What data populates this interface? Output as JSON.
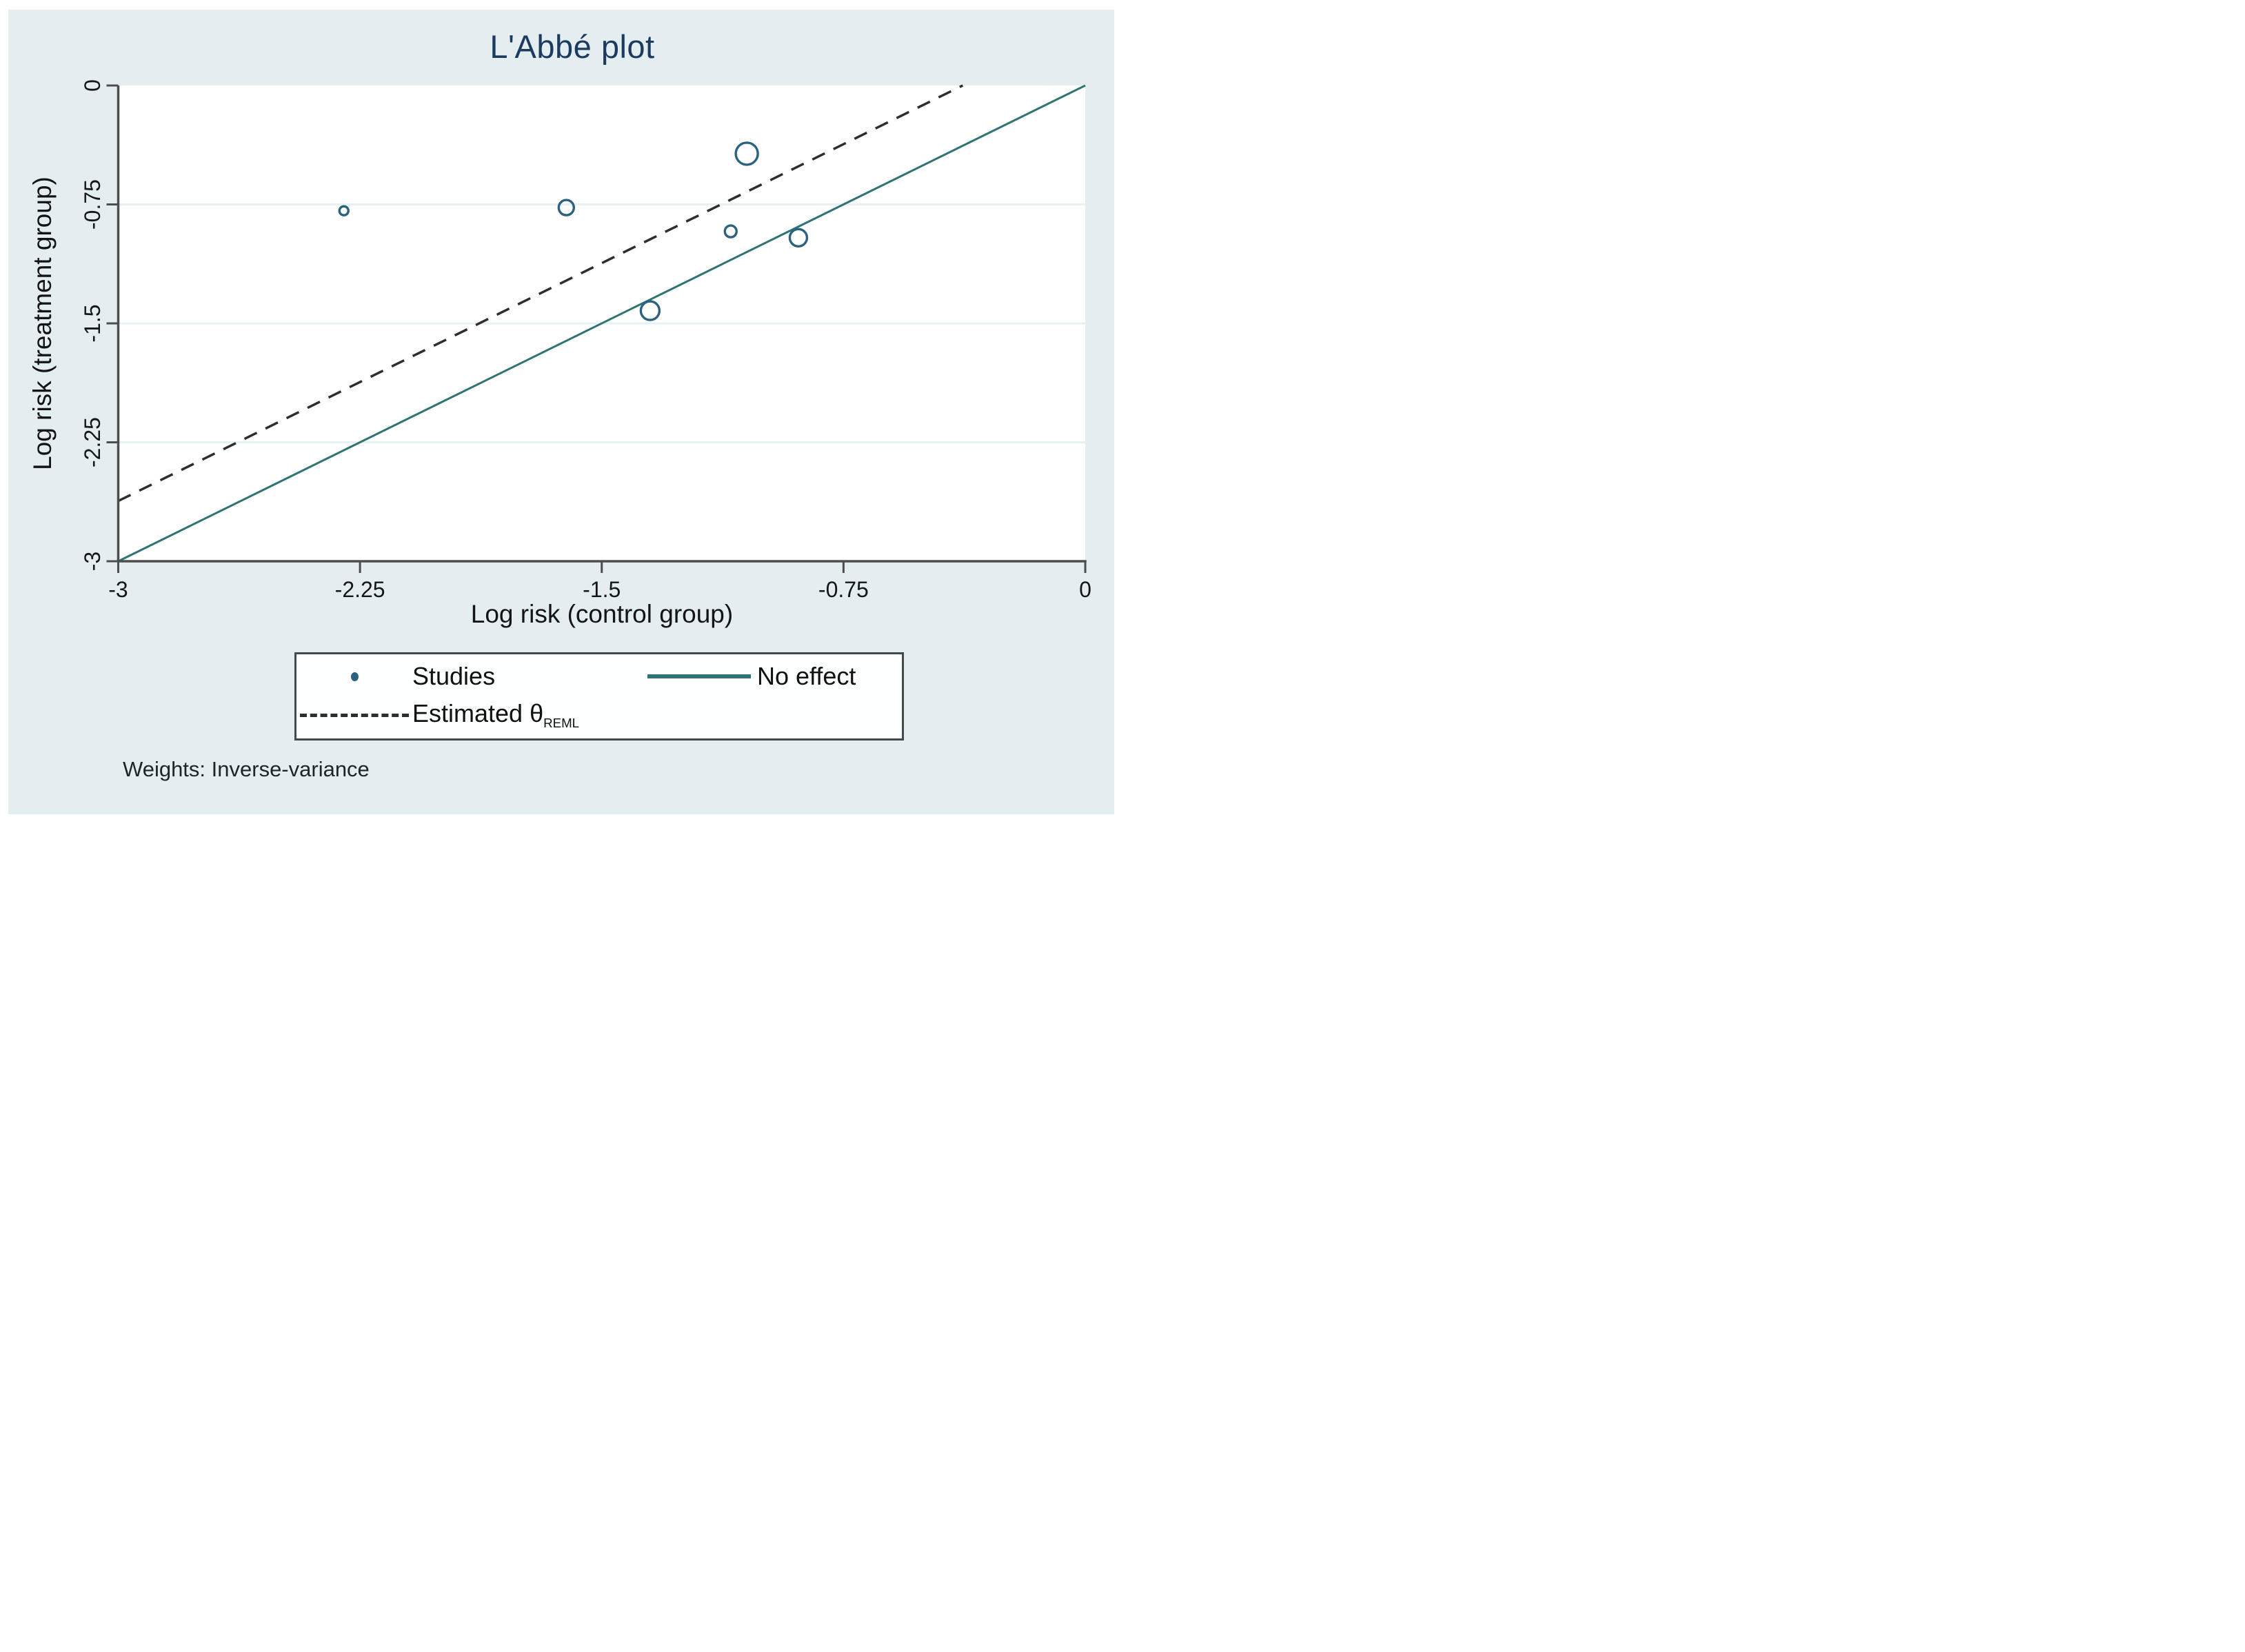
{
  "title": "L'Abbé plot",
  "x_axis": {
    "label": "Log risk (control group)"
  },
  "y_axis": {
    "label": "Log risk (treatment group)"
  },
  "legend": {
    "studies_label": "Studies",
    "no_effect_label": "No effect",
    "estimated_label": "Estimated θ",
    "estimated_sub": "REML"
  },
  "note": "Weights: Inverse-variance",
  "colors": {
    "canvas": "#e4eef0",
    "plot_background": "#ffffff",
    "axis": "#4d4d4d",
    "gridline": "#e7f1f3",
    "title_text": "#1d3a5f",
    "marker_stroke": "#2c617f",
    "no_effect_line": "#2f7472",
    "estimated_line": "#2e2e2e"
  },
  "chart_data": {
    "type": "scatter",
    "title": "L'Abbé plot",
    "xlabel": "Log risk (control group)",
    "ylabel": "Log risk (treatment group)",
    "xlim": [
      -3,
      0
    ],
    "ylim": [
      -3,
      0
    ],
    "x_ticks": [
      {
        "value": -3,
        "label": "-3"
      },
      {
        "value": -2.25,
        "label": "-2.25"
      },
      {
        "value": -1.5,
        "label": "-1.5"
      },
      {
        "value": -0.75,
        "label": "-0.75"
      },
      {
        "value": 0,
        "label": "0"
      }
    ],
    "y_ticks": [
      {
        "value": 0,
        "label": "0"
      },
      {
        "value": -0.75,
        "label": "-0.75"
      },
      {
        "value": -1.5,
        "label": "-1.5"
      },
      {
        "value": -2.25,
        "label": "-2.25"
      },
      {
        "value": -3,
        "label": "-3"
      }
    ],
    "y_gridlines": [
      -0.75,
      -1.5,
      -2.25
    ],
    "grid": true,
    "legend_position": "bottom",
    "series": [
      {
        "name": "Studies",
        "marker": "open-circle",
        "weights": "Inverse-variance",
        "points": [
          {
            "x": -2.3,
            "y": -0.79,
            "marker_radius": 6.5
          },
          {
            "x": -1.61,
            "y": -0.77,
            "marker_radius": 11
          },
          {
            "x": -1.05,
            "y": -0.43,
            "marker_radius": 16
          },
          {
            "x": -1.1,
            "y": -0.92,
            "marker_radius": 8.5
          },
          {
            "x": -0.89,
            "y": -0.96,
            "marker_radius": 12.5
          },
          {
            "x": -1.35,
            "y": -1.42,
            "marker_radius": 13.5
          }
        ]
      }
    ],
    "lines": [
      {
        "name": "No effect",
        "style": "solid",
        "x1": -3,
        "y1": -3,
        "x2": 0,
        "y2": 0
      },
      {
        "name": "Estimated θREML",
        "style": "dashed",
        "x1": -3,
        "y1": -2.62,
        "x2": -0.38,
        "y2": 0
      }
    ]
  }
}
